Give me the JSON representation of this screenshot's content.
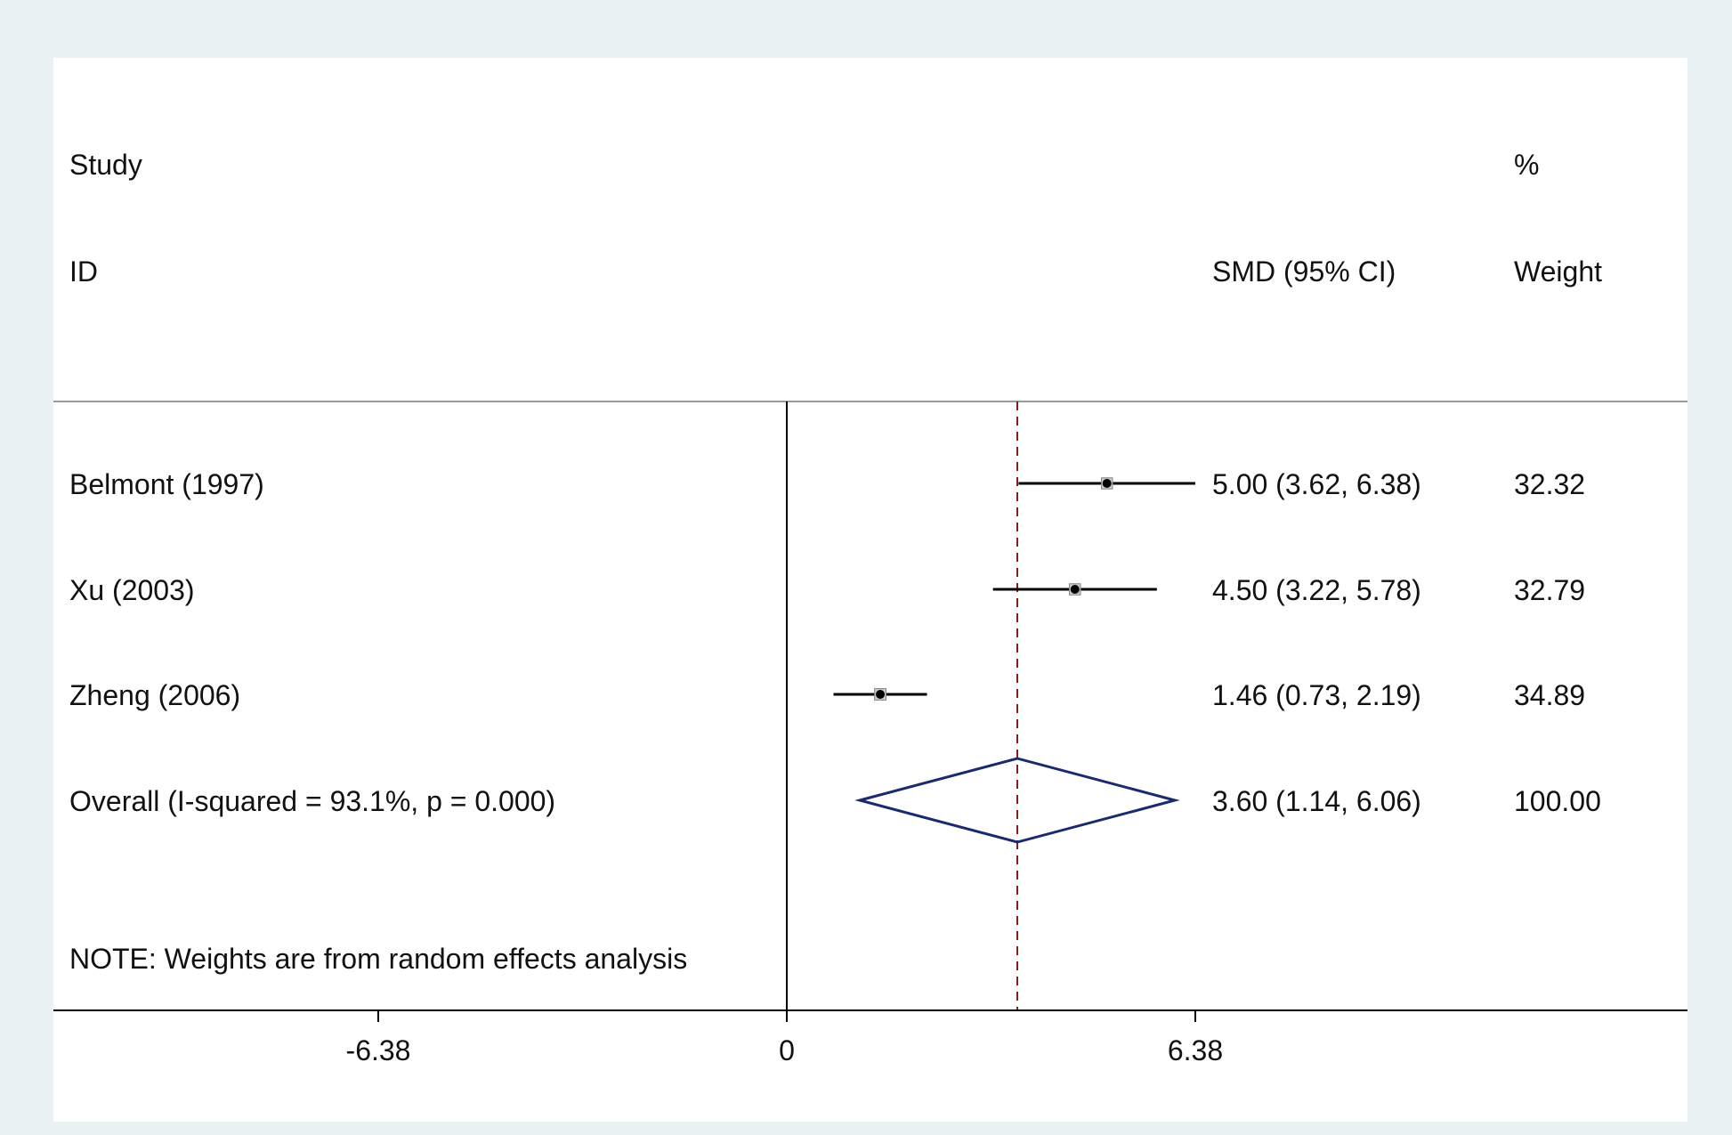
{
  "header": {
    "study_label": "Study",
    "id_label": "ID",
    "smd_label": "SMD (95% CI)",
    "pct_label": "%",
    "weight_label": "Weight"
  },
  "note": "NOTE: Weights are from random effects analysis",
  "colors": {
    "background": "#eaf2f3",
    "panel": "#ffffff",
    "ref_line": "#8b1a1a",
    "diamond": "#1a2a6c",
    "ci_line": "#000000"
  },
  "chart_data": {
    "type": "forest",
    "x_ticks": [
      -6.38,
      0,
      6.38
    ],
    "x_tick_labels": [
      "-6.38",
      "0",
      "6.38"
    ],
    "xlim": [
      -11.47,
      14.05
    ],
    "null_line": 0,
    "overall_line": 3.6,
    "studies": [
      {
        "name": "Belmont (1997)",
        "smd": 5.0,
        "lo": 3.62,
        "hi": 6.38,
        "ci_text": "5.00 (3.62, 6.38)",
        "weight": 32.32,
        "weight_text": "32.32"
      },
      {
        "name": "Xu (2003)",
        "smd": 4.5,
        "lo": 3.22,
        "hi": 5.78,
        "ci_text": "4.50 (3.22, 5.78)",
        "weight": 32.79,
        "weight_text": "32.79"
      },
      {
        "name": "Zheng (2006)",
        "smd": 1.46,
        "lo": 0.73,
        "hi": 2.19,
        "ci_text": "1.46 (0.73, 2.19)",
        "weight": 34.89,
        "weight_text": "34.89"
      }
    ],
    "overall": {
      "name": "Overall  (I-squared = 93.1%, p = 0.000)",
      "smd": 3.6,
      "lo": 1.14,
      "hi": 6.06,
      "ci_text": "3.60 (1.14, 6.06)",
      "weight_text": "100.00"
    }
  }
}
